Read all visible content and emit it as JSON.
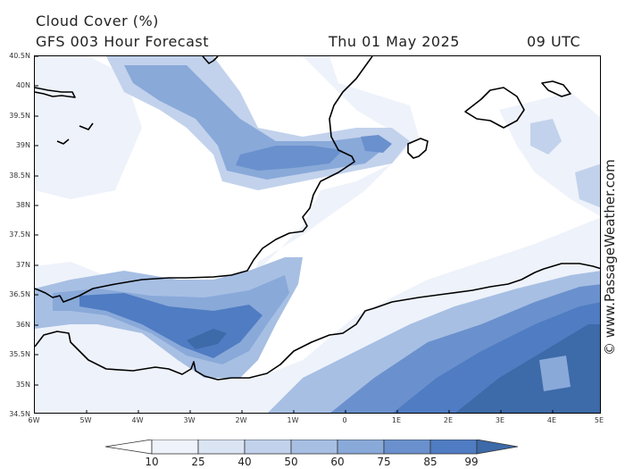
{
  "header": {
    "title": "Cloud Cover (%)",
    "model": "GFS 003 Hour Forecast",
    "date": "Thu 01 May 2025",
    "time": "09 UTC"
  },
  "axes": {
    "lat_labels": [
      "40.5N",
      "40N",
      "39.5N",
      "39N",
      "38.5N",
      "38N",
      "37.5N",
      "37N",
      "36.5N",
      "36N",
      "35.5N",
      "35N",
      "34.5N"
    ],
    "lon_labels": [
      "6W",
      "5W",
      "4W",
      "3W",
      "2W",
      "1W",
      "0",
      "1E",
      "2E",
      "3E",
      "4E",
      "5E"
    ]
  },
  "legend": {
    "levels": [
      "10",
      "25",
      "40",
      "50",
      "60",
      "75",
      "85",
      "99"
    ],
    "colors": [
      "#ffffff",
      "#eef2fa",
      "#dbe4f3",
      "#c2d2ec",
      "#a7bfe3",
      "#89a9d9",
      "#6a91cd",
      "#4f7cc2",
      "#3d6aa8"
    ]
  },
  "watermark": "© www.PassageWeather.com"
}
